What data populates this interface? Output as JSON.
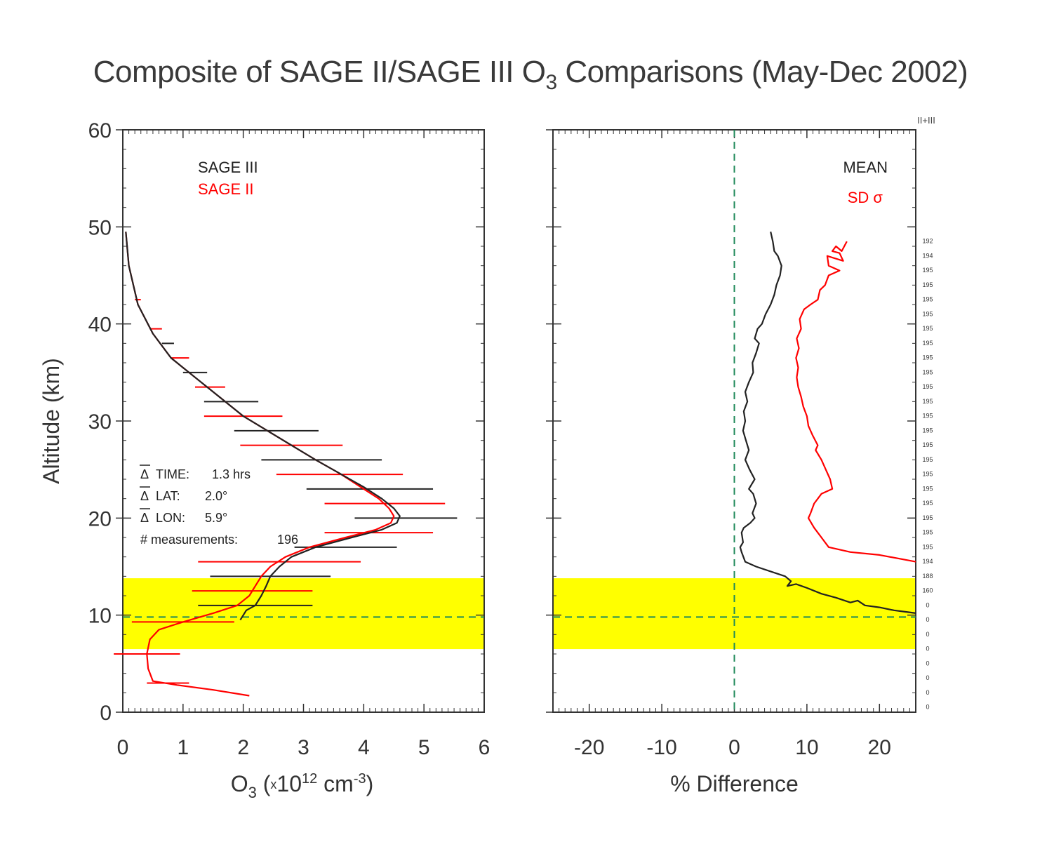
{
  "title": {
    "prefix": "Composite of SAGE II/SAGE III O",
    "sub": "3",
    "suffix": " Comparisons (May-Dec 2002)"
  },
  "chart_data": [
    {
      "type": "line",
      "xlabel": {
        "prefix": "O",
        "sub": "3",
        "mid": " (",
        "mult": "x",
        "base": "10",
        "exp": "12",
        "unit": " cm",
        "unit_exp": "-3",
        "close": ")"
      },
      "ylabel": "Altitude (km)",
      "xlim": [
        0,
        6
      ],
      "ylim": [
        0,
        60
      ],
      "xticks": [
        "0",
        "1",
        "2",
        "3",
        "4",
        "5",
        "6"
      ],
      "yticks": [
        "0",
        "10",
        "20",
        "30",
        "40",
        "50",
        "60"
      ],
      "legend": {
        "placement": "top-left",
        "entries": [
          "SAGE III",
          "SAGE II"
        ]
      },
      "highlight_band": {
        "y_range": [
          6.5,
          13.8
        ],
        "color": "#ffff00"
      },
      "tropopause_line_y": 9.8,
      "stats": [
        {
          "label": "TIME:",
          "value": "1.3 hrs",
          "overbar": true
        },
        {
          "label": "LAT:",
          "value": "2.0°",
          "overbar": true
        },
        {
          "label": "LON:",
          "value": "5.9°",
          "overbar": true
        },
        {
          "label": "# measurements:",
          "value": "196",
          "overbar": false
        }
      ],
      "series": [
        {
          "name": "SAGE III",
          "color": "#222222",
          "points": [
            [
              0.05,
              49.5
            ],
            [
              0.1,
              46
            ],
            [
              0.25,
              42
            ],
            [
              0.5,
              39
            ],
            [
              0.8,
              36.5
            ],
            [
              1.2,
              34.5
            ],
            [
              1.6,
              32.5
            ],
            [
              2.0,
              30.5
            ],
            [
              2.4,
              29
            ],
            [
              2.8,
              27.5
            ],
            [
              3.2,
              26
            ],
            [
              3.6,
              24.6
            ],
            [
              4.0,
              23.2
            ],
            [
              4.3,
              22
            ],
            [
              4.5,
              21
            ],
            [
              4.6,
              20.2
            ],
            [
              4.55,
              19.5
            ],
            [
              4.3,
              18.8
            ],
            [
              3.8,
              18
            ],
            [
              3.2,
              17
            ],
            [
              2.8,
              16
            ],
            [
              2.6,
              15
            ],
            [
              2.45,
              14
            ],
            [
              2.38,
              13
            ],
            [
              2.3,
              12
            ],
            [
              2.2,
              11
            ],
            [
              2.05,
              10.5
            ],
            [
              1.95,
              9.5
            ]
          ]
        },
        {
          "name": "SAGE II",
          "color": "#ff0000",
          "points": [
            [
              0.05,
              49.5
            ],
            [
              0.1,
              46
            ],
            [
              0.25,
              42
            ],
            [
              0.5,
              39
            ],
            [
              0.8,
              36.5
            ],
            [
              1.2,
              34.5
            ],
            [
              1.6,
              32.5
            ],
            [
              2.0,
              30.5
            ],
            [
              2.4,
              29
            ],
            [
              2.8,
              27.5
            ],
            [
              3.2,
              26
            ],
            [
              3.6,
              24.6
            ],
            [
              3.95,
              23.2
            ],
            [
              4.25,
              22
            ],
            [
              4.42,
              21
            ],
            [
              4.5,
              20.2
            ],
            [
              4.45,
              19.5
            ],
            [
              4.2,
              18.8
            ],
            [
              3.7,
              18
            ],
            [
              3.1,
              17
            ],
            [
              2.7,
              16
            ],
            [
              2.45,
              15
            ],
            [
              2.3,
              14
            ],
            [
              2.2,
              13
            ],
            [
              2.1,
              12
            ],
            [
              1.9,
              11
            ],
            [
              1.5,
              10.2
            ],
            [
              1.0,
              9.3
            ],
            [
              0.6,
              8.5
            ],
            [
              0.45,
              7.5
            ],
            [
              0.4,
              6
            ],
            [
              0.42,
              4.5
            ],
            [
              0.5,
              3.2
            ],
            [
              0.9,
              2.8
            ],
            [
              1.5,
              2.3
            ],
            [
              2.1,
              1.7
            ]
          ]
        }
      ],
      "error_bars": [
        {
          "series": "SAGE III",
          "y": 38,
          "x": 0.75,
          "half_width": 0.1
        },
        {
          "series": "SAGE III",
          "y": 35,
          "x": 1.2,
          "half_width": 0.2
        },
        {
          "series": "SAGE III",
          "y": 32,
          "x": 1.8,
          "half_width": 0.45
        },
        {
          "series": "SAGE III",
          "y": 29,
          "x": 2.55,
          "half_width": 0.7
        },
        {
          "series": "SAGE III",
          "y": 26,
          "x": 3.3,
          "half_width": 1.0
        },
        {
          "series": "SAGE III",
          "y": 23,
          "x": 4.1,
          "half_width": 1.05
        },
        {
          "series": "SAGE III",
          "y": 20,
          "x": 4.7,
          "half_width": 0.85
        },
        {
          "series": "SAGE III",
          "y": 17,
          "x": 3.7,
          "half_width": 0.85
        },
        {
          "series": "SAGE III",
          "y": 14,
          "x": 2.45,
          "half_width": 1.0
        },
        {
          "series": "SAGE III",
          "y": 11,
          "x": 2.2,
          "half_width": 0.95
        },
        {
          "series": "SAGE II",
          "y": 42.5,
          "x": 0.25,
          "half_width": 0.05
        },
        {
          "series": "SAGE II",
          "y": 39.5,
          "x": 0.55,
          "half_width": 0.1
        },
        {
          "series": "SAGE II",
          "y": 36.5,
          "x": 0.95,
          "half_width": 0.15
        },
        {
          "series": "SAGE II",
          "y": 33.5,
          "x": 1.45,
          "half_width": 0.25
        },
        {
          "series": "SAGE II",
          "y": 30.5,
          "x": 2.0,
          "half_width": 0.65
        },
        {
          "series": "SAGE II",
          "y": 27.5,
          "x": 2.8,
          "half_width": 0.85
        },
        {
          "series": "SAGE II",
          "y": 24.5,
          "x": 3.6,
          "half_width": 1.05
        },
        {
          "series": "SAGE II",
          "y": 21.5,
          "x": 4.35,
          "half_width": 1.0
        },
        {
          "series": "SAGE II",
          "y": 18.5,
          "x": 4.25,
          "half_width": 0.9
        },
        {
          "series": "SAGE II",
          "y": 15.5,
          "x": 2.6,
          "half_width": 1.35
        },
        {
          "series": "SAGE II",
          "y": 12.5,
          "x": 2.15,
          "half_width": 1.0
        },
        {
          "series": "SAGE II",
          "y": 9.3,
          "x": 1.0,
          "half_width": 0.85
        },
        {
          "series": "SAGE II",
          "y": 6.0,
          "x": 0.4,
          "half_width": 0.55
        },
        {
          "series": "SAGE II",
          "y": 3.0,
          "x": 0.75,
          "half_width": 0.35
        }
      ]
    },
    {
      "type": "line",
      "xlabel": "% Difference",
      "xlim": [
        -25,
        25
      ],
      "ylim": [
        0,
        60
      ],
      "xticks": [
        "-20",
        "-10",
        "0",
        "10",
        "20"
      ],
      "legend": {
        "placement": "top-right",
        "entries": [
          "MEAN",
          "SD σ"
        ]
      },
      "highlight_band": {
        "y_range": [
          6.5,
          13.8
        ],
        "color": "#ffff00"
      },
      "tropopause_line_y": 9.8,
      "zero_line_x": 0,
      "right_header": "II+III",
      "series": [
        {
          "name": "MEAN",
          "color": "#222222",
          "points": [
            [
              5,
              49.5
            ],
            [
              5.3,
              48.5
            ],
            [
              5.5,
              47.5
            ],
            [
              6,
              47
            ],
            [
              6.5,
              46
            ],
            [
              6.3,
              45
            ],
            [
              5.8,
              44
            ],
            [
              5.5,
              43
            ],
            [
              5,
              42
            ],
            [
              4.3,
              41
            ],
            [
              3.8,
              40
            ],
            [
              3.2,
              39.5
            ],
            [
              2.8,
              38.5
            ],
            [
              3.4,
              38
            ],
            [
              3,
              37
            ],
            [
              2.5,
              36
            ],
            [
              2.6,
              35
            ],
            [
              2,
              34
            ],
            [
              1.5,
              33
            ],
            [
              1.8,
              32
            ],
            [
              1.3,
              31
            ],
            [
              1.5,
              30
            ],
            [
              1.2,
              29
            ],
            [
              1.6,
              28
            ],
            [
              2,
              27
            ],
            [
              1.5,
              26
            ],
            [
              2.1,
              25
            ],
            [
              2.8,
              24
            ],
            [
              2,
              23
            ],
            [
              2.6,
              22.5
            ],
            [
              3,
              21.5
            ],
            [
              2.5,
              20.5
            ],
            [
              2.8,
              20
            ],
            [
              2.2,
              19.5
            ],
            [
              1.3,
              19
            ],
            [
              1,
              18.5
            ],
            [
              1.2,
              17.5
            ],
            [
              0.8,
              17
            ],
            [
              1,
              16.5
            ],
            [
              1.5,
              15.5
            ],
            [
              3,
              15
            ],
            [
              5,
              14.5
            ],
            [
              7,
              14
            ],
            [
              7.8,
              13.5
            ],
            [
              7.3,
              13
            ],
            [
              8.5,
              13.2
            ],
            [
              10,
              12.8
            ],
            [
              12,
              12.2
            ],
            [
              14,
              11.8
            ],
            [
              16,
              11.3
            ],
            [
              17,
              11.5
            ],
            [
              18,
              11
            ],
            [
              20,
              10.8
            ],
            [
              22,
              10.5
            ],
            [
              24,
              10.3
            ],
            [
              25,
              10.2
            ]
          ]
        },
        {
          "name": "SD σ",
          "color": "#ff0000",
          "points": [
            [
              15.5,
              48.5
            ],
            [
              14.8,
              47.5
            ],
            [
              14,
              48
            ],
            [
              13.5,
              47.5
            ],
            [
              14.5,
              47.3
            ],
            [
              15,
              46.5
            ],
            [
              12.8,
              47
            ],
            [
              13,
              46
            ],
            [
              14.5,
              45.5
            ],
            [
              13,
              45
            ],
            [
              12.5,
              44
            ],
            [
              11.8,
              43.5
            ],
            [
              11.5,
              42.5
            ],
            [
              10.5,
              42
            ],
            [
              9.6,
              41.5
            ],
            [
              9,
              40.5
            ],
            [
              9.2,
              39.5
            ],
            [
              8.6,
              38.5
            ],
            [
              8.9,
              37.5
            ],
            [
              8.5,
              36.5
            ],
            [
              8.8,
              35.5
            ],
            [
              8.6,
              34.5
            ],
            [
              8.8,
              33.5
            ],
            [
              9.2,
              32.5
            ],
            [
              9.5,
              31.5
            ],
            [
              10,
              30.5
            ],
            [
              10.2,
              29.5
            ],
            [
              10.8,
              28.5
            ],
            [
              11.5,
              27.5
            ],
            [
              11.2,
              27
            ],
            [
              12,
              26
            ],
            [
              12.6,
              25
            ],
            [
              13.2,
              24
            ],
            [
              13.5,
              23
            ],
            [
              12,
              22.5
            ],
            [
              11,
              21.5
            ],
            [
              10.5,
              20.5
            ],
            [
              10.2,
              20
            ],
            [
              11,
              19
            ],
            [
              12,
              18
            ],
            [
              13,
              17
            ],
            [
              16,
              16.5
            ],
            [
              20,
              16.2
            ],
            [
              25,
              15.5
            ]
          ]
        }
      ],
      "sample_counts": [
        "192",
        "194",
        "195",
        "195",
        "195",
        "195",
        "195",
        "195",
        "195",
        "195",
        "195",
        "195",
        "195",
        "195",
        "195",
        "195",
        "195",
        "195",
        "195",
        "195",
        "195",
        "195",
        "194",
        "188",
        "160",
        "0",
        "0",
        "0",
        "0",
        "0",
        "0",
        "0",
        "0"
      ]
    }
  ]
}
